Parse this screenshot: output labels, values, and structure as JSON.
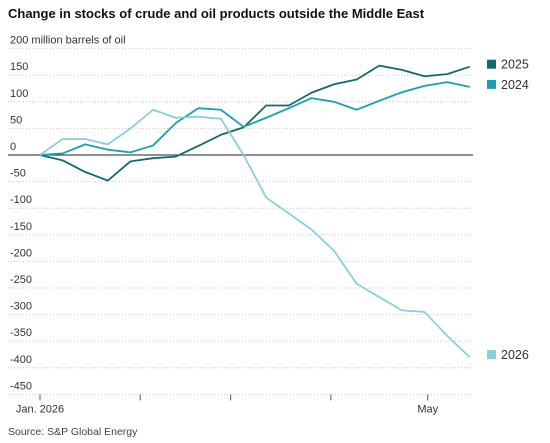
{
  "chart_data": {
    "type": "line",
    "title": "Change in stocks of crude and oil products outside the Middle East",
    "source": "Source: S&P Global Energy",
    "x": [
      0,
      7,
      14,
      21,
      28,
      35,
      42,
      49,
      56,
      63,
      70,
      77,
      84,
      91,
      98,
      105,
      112,
      119,
      126,
      133
    ],
    "xlim": [
      0,
      134
    ],
    "xticks": [
      {
        "value": 0,
        "label": "Jan. 2026"
      },
      {
        "value": 31,
        "label": null
      },
      {
        "value": 59,
        "label": null
      },
      {
        "value": 90,
        "label": null
      },
      {
        "value": 120,
        "label": "May"
      }
    ],
    "ylim": [
      -450,
      200
    ],
    "yticks": [
      {
        "value": 200,
        "label": "200 million barrels of oil"
      },
      150,
      100,
      50,
      0,
      -50,
      -100,
      -150,
      -200,
      -250,
      -300,
      -350,
      -400,
      -450
    ],
    "grid": true,
    "legend": "right",
    "series": [
      {
        "name": "2025",
        "color": "#17686a",
        "values": [
          0,
          -10,
          -32,
          -48,
          -12,
          -6,
          -3,
          17,
          38,
          52,
          93,
          93,
          117,
          133,
          142,
          168,
          160,
          148,
          152,
          166
        ]
      },
      {
        "name": "2024",
        "color": "#1b9fb4",
        "values": [
          0,
          3,
          20,
          10,
          5,
          18,
          60,
          88,
          85,
          53,
          70,
          88,
          107,
          100,
          85,
          102,
          118,
          130,
          137,
          128
        ]
      },
      {
        "name": "2026",
        "color": "#8ccfdc",
        "values": [
          0,
          30,
          30,
          20,
          50,
          85,
          70,
          72,
          68,
          0,
          -80,
          -110,
          -140,
          -180,
          -242,
          -267,
          -292,
          -295,
          -340,
          -380
        ]
      }
    ]
  }
}
